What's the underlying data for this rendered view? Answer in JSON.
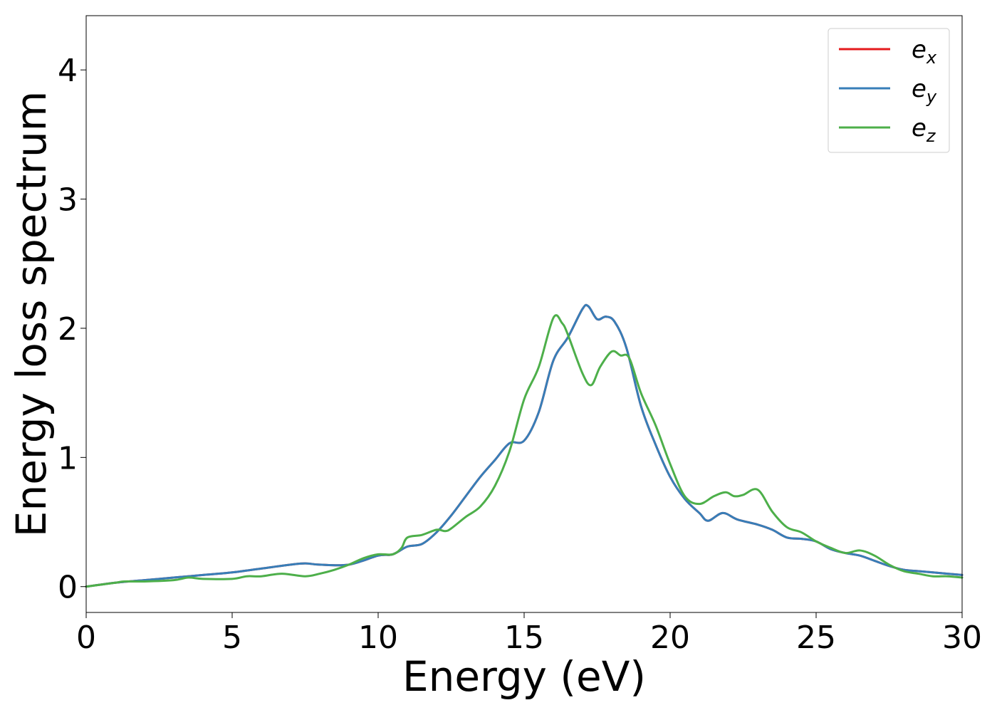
{
  "chart_data": {
    "type": "line",
    "title": "",
    "xlabel": "Energy (eV)",
    "ylabel": "Energy loss spectrum",
    "xlim": [
      0,
      30
    ],
    "ylim": [
      -0.2,
      4.42
    ],
    "xticks": [
      0,
      5,
      10,
      15,
      20,
      25,
      30
    ],
    "yticks": [
      0,
      1,
      2,
      3,
      4
    ],
    "grid": false,
    "legend_position": "top-right",
    "series": [
      {
        "name": "e_x",
        "name_base": "e",
        "name_sub": "x",
        "color": "#e41a1c",
        "x": [
          0,
          1,
          2,
          3,
          4,
          5,
          6,
          7,
          7.5,
          8,
          9,
          10,
          10.5,
          11,
          11.5,
          12,
          12.5,
          13,
          13.5,
          14,
          14.5,
          15,
          15.5,
          16,
          16.5,
          17,
          17.2,
          17.5,
          17.8,
          18.1,
          18.5,
          19,
          19.5,
          20,
          20.5,
          21,
          21.3,
          21.8,
          22.3,
          23,
          23.5,
          24,
          24.5,
          25,
          25.5,
          26,
          26.5,
          27,
          27.5,
          28,
          28.5,
          29,
          29.5,
          30
        ],
        "y": [
          0.0,
          0.03,
          0.05,
          0.07,
          0.09,
          0.11,
          0.14,
          0.17,
          0.18,
          0.17,
          0.17,
          0.24,
          0.25,
          0.31,
          0.33,
          0.42,
          0.55,
          0.7,
          0.85,
          0.98,
          1.11,
          1.13,
          1.35,
          1.75,
          1.93,
          2.15,
          2.17,
          2.07,
          2.09,
          2.05,
          1.85,
          1.4,
          1.1,
          0.85,
          0.68,
          0.57,
          0.51,
          0.57,
          0.52,
          0.48,
          0.44,
          0.38,
          0.37,
          0.35,
          0.29,
          0.26,
          0.24,
          0.2,
          0.16,
          0.13,
          0.12,
          0.11,
          0.1,
          0.09
        ]
      },
      {
        "name": "e_y",
        "name_base": "e",
        "name_sub": "y",
        "color": "#377eb8",
        "x": [
          0,
          1,
          2,
          3,
          4,
          5,
          6,
          7,
          7.5,
          8,
          9,
          10,
          10.5,
          11,
          11.5,
          12,
          12.5,
          13,
          13.5,
          14,
          14.5,
          15,
          15.5,
          16,
          16.5,
          17,
          17.2,
          17.5,
          17.8,
          18.1,
          18.5,
          19,
          19.5,
          20,
          20.5,
          21,
          21.3,
          21.8,
          22.3,
          23,
          23.5,
          24,
          24.5,
          25,
          25.5,
          26,
          26.5,
          27,
          27.5,
          28,
          28.5,
          29,
          29.5,
          30
        ],
        "y": [
          0.0,
          0.03,
          0.05,
          0.07,
          0.09,
          0.11,
          0.14,
          0.17,
          0.18,
          0.17,
          0.17,
          0.24,
          0.25,
          0.31,
          0.33,
          0.42,
          0.55,
          0.7,
          0.85,
          0.98,
          1.11,
          1.13,
          1.35,
          1.75,
          1.93,
          2.15,
          2.17,
          2.07,
          2.09,
          2.05,
          1.85,
          1.4,
          1.1,
          0.85,
          0.68,
          0.57,
          0.51,
          0.57,
          0.52,
          0.48,
          0.44,
          0.38,
          0.37,
          0.35,
          0.29,
          0.26,
          0.24,
          0.2,
          0.16,
          0.13,
          0.12,
          0.11,
          0.1,
          0.09
        ]
      },
      {
        "name": "e_z",
        "name_base": "e",
        "name_sub": "z",
        "color": "#4daf4a",
        "x": [
          0,
          1,
          1.3,
          2,
          3,
          3.5,
          4,
          5,
          5.5,
          6,
          6.7,
          7.5,
          8,
          8.5,
          9,
          9.5,
          10,
          10.5,
          10.8,
          11,
          11.5,
          12,
          12.3,
          12.5,
          13,
          13.5,
          14,
          14.5,
          15,
          15.5,
          16,
          16.3,
          16.5,
          17,
          17.3,
          17.6,
          18,
          18.3,
          18.6,
          19,
          19.5,
          20,
          20.5,
          21,
          21.5,
          21.9,
          22.2,
          22.5,
          23,
          23.5,
          24,
          24.5,
          25,
          25.5,
          26,
          26.5,
          27,
          27.5,
          28,
          28.5,
          29,
          29.5,
          30
        ],
        "y": [
          0.0,
          0.03,
          0.04,
          0.04,
          0.05,
          0.07,
          0.06,
          0.06,
          0.08,
          0.08,
          0.1,
          0.08,
          0.1,
          0.13,
          0.17,
          0.22,
          0.25,
          0.25,
          0.3,
          0.38,
          0.4,
          0.44,
          0.43,
          0.45,
          0.54,
          0.62,
          0.78,
          1.05,
          1.45,
          1.7,
          2.08,
          2.04,
          1.95,
          1.65,
          1.56,
          1.7,
          1.82,
          1.79,
          1.77,
          1.5,
          1.25,
          0.95,
          0.7,
          0.64,
          0.7,
          0.73,
          0.7,
          0.71,
          0.75,
          0.58,
          0.46,
          0.42,
          0.35,
          0.3,
          0.26,
          0.28,
          0.24,
          0.17,
          0.12,
          0.1,
          0.08,
          0.08,
          0.07
        ]
      }
    ]
  }
}
